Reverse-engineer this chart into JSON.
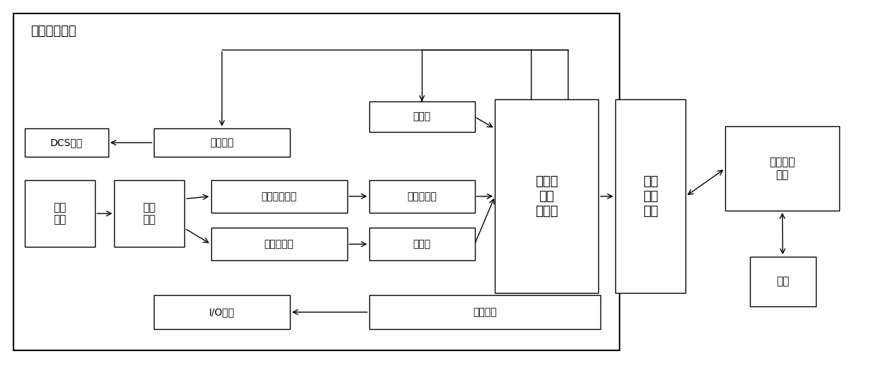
{
  "title": "火焰检测单元",
  "bg_color": "#ffffff",
  "border_color": "#000000",
  "figsize": [
    12.4,
    5.4
  ],
  "dpi": 100,
  "boxes": {
    "镜头\n组件": [
      0.028,
      0.355,
      0.08,
      0.175
    ],
    "分光\n组件": [
      0.13,
      0.355,
      0.08,
      0.175
    ],
    "可见光采集器": [
      0.24,
      0.445,
      0.155,
      0.085
    ],
    "红外采集器": [
      0.24,
      0.32,
      0.155,
      0.085
    ],
    "DCS系统": [
      0.028,
      0.59,
      0.095,
      0.075
    ],
    "输出接口": [
      0.175,
      0.59,
      0.155,
      0.075
    ],
    "存储器": [
      0.42,
      0.655,
      0.12,
      0.08
    ],
    "视频解码器": [
      0.42,
      0.445,
      0.12,
      0.085
    ],
    "采样器": [
      0.42,
      0.32,
      0.12,
      0.085
    ],
    "嵌入式\n数据\n处理器": [
      0.563,
      0.235,
      0.118,
      0.505
    ],
    "电源单元": [
      0.42,
      0.14,
      0.263,
      0.09
    ],
    "I/O接口": [
      0.175,
      0.14,
      0.155,
      0.09
    ],
    "数据\n网络\n接口": [
      0.7,
      0.235,
      0.08,
      0.505
    ],
    "数据处理\n中心": [
      0.825,
      0.45,
      0.13,
      0.22
    ],
    "云端": [
      0.853,
      0.2,
      0.075,
      0.13
    ]
  },
  "font_sizes": {
    "镜头\n组件": 11,
    "分光\n组件": 11,
    "可见光采集器": 10,
    "红外采集器": 10,
    "DCS系统": 10,
    "输出接口": 10,
    "存储器": 10,
    "视频解码器": 10,
    "采样器": 10,
    "嵌入式\n数据\n处理器": 13,
    "电源单元": 10,
    "I/O接口": 10,
    "数据\n网络\n接口": 13,
    "数据处理\n中心": 11,
    "云端": 11
  }
}
